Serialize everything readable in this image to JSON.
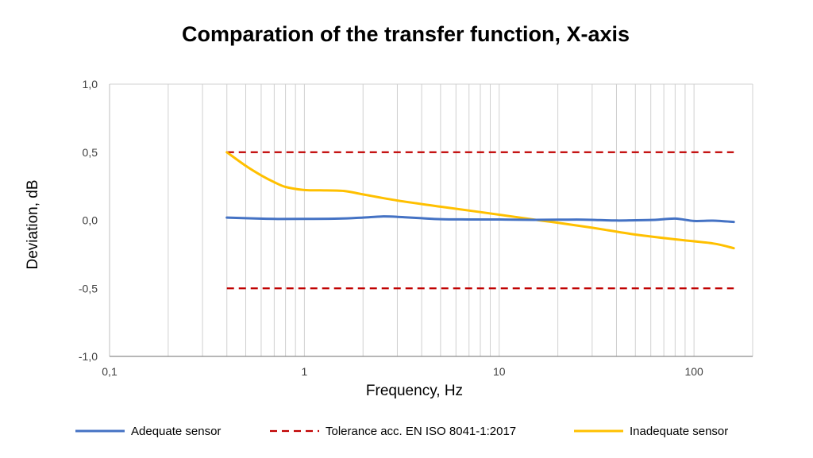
{
  "chart_data": {
    "type": "line",
    "title": "Comparation of the transfer function, X-axis",
    "xlabel": "Frequency, Hz",
    "ylabel": "Deviation, dB",
    "x_scale": "log",
    "xlim": [
      0.1,
      200
    ],
    "ylim": [
      -1.0,
      1.0
    ],
    "x_ticks": [
      0.1,
      1,
      10,
      100
    ],
    "x_tick_labels": [
      "0,1",
      "1",
      "10",
      "100"
    ],
    "y_ticks": [
      1.0,
      0.5,
      0.0,
      -0.5,
      -1.0
    ],
    "y_tick_labels": [
      "1,0",
      "0,5",
      "0,0",
      "-0,5",
      "-1,0"
    ],
    "grid": "vertical",
    "legend_position": "bottom",
    "series": [
      {
        "name": "Adequate sensor",
        "color": "#4472C4",
        "style": "solid",
        "x": [
          0.4,
          0.5,
          0.7,
          1,
          1.5,
          2,
          2.5,
          3,
          4,
          5,
          7,
          10,
          15,
          20,
          25,
          30,
          40,
          50,
          63,
          80,
          100,
          125,
          160
        ],
        "y": [
          0.02,
          0.015,
          0.01,
          0.01,
          0.012,
          0.02,
          0.028,
          0.025,
          0.015,
          0.008,
          0.006,
          0.006,
          0.003,
          0.004,
          0.005,
          0.003,
          -0.002,
          0.0,
          0.003,
          0.012,
          -0.005,
          -0.003,
          -0.012
        ]
      },
      {
        "name": "Tolerance acc. EN ISO 8041-1:2017",
        "color": "#C00000",
        "style": "dashed",
        "x": [
          0.4,
          160
        ],
        "y": [
          0.5,
          0.5
        ],
        "y_lower": [
          -0.5,
          -0.5
        ]
      },
      {
        "name": "Inadequate sensor",
        "color": "#FFC000",
        "style": "solid",
        "x": [
          0.4,
          0.5,
          0.6,
          0.7,
          0.8,
          1,
          1.2,
          1.6,
          2,
          3,
          5,
          8,
          12,
          16,
          20,
          30,
          50,
          80,
          125,
          160
        ],
        "y": [
          0.5,
          0.4,
          0.33,
          0.28,
          0.245,
          0.222,
          0.22,
          0.215,
          0.19,
          0.145,
          0.1,
          0.06,
          0.025,
          0.0,
          -0.018,
          -0.055,
          -0.105,
          -0.14,
          -0.17,
          -0.205
        ]
      }
    ]
  }
}
